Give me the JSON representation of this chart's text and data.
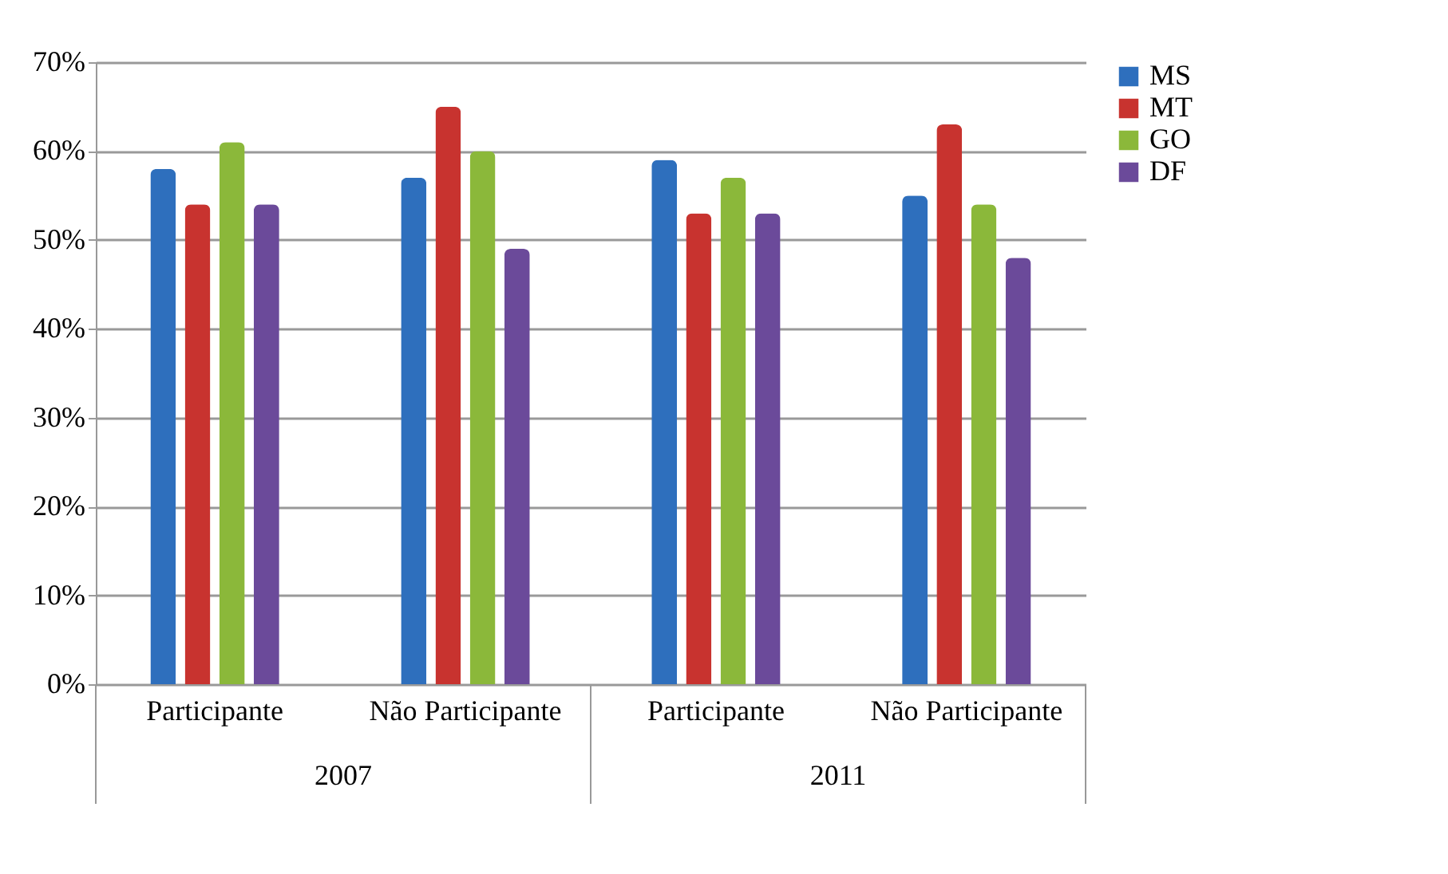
{
  "chart_data": {
    "type": "bar",
    "categories": [
      "Participante",
      "Não Participante",
      "Participante",
      "Não Participante"
    ],
    "series": [
      {
        "name": "MS",
        "color": "#2e6fbd",
        "values": [
          0.58,
          0.57,
          0.59,
          0.55
        ]
      },
      {
        "name": "MT",
        "color": "#c8332f",
        "values": [
          0.54,
          0.65,
          0.53,
          0.63
        ]
      },
      {
        "name": "GO",
        "color": "#8bb83a",
        "values": [
          0.61,
          0.6,
          0.57,
          0.54
        ]
      },
      {
        "name": "DF",
        "color": "#6b4a9a",
        "values": [
          0.54,
          0.49,
          0.53,
          0.48
        ]
      }
    ],
    "ylim": [
      0,
      0.7
    ],
    "yticks": [
      {
        "value": 0,
        "label": "0%"
      },
      {
        "value": 0.1,
        "label": "10%"
      },
      {
        "value": 0.2,
        "label": "20%"
      },
      {
        "value": 0.3,
        "label": "30%"
      },
      {
        "value": 0.4,
        "label": "40%"
      },
      {
        "value": 0.5,
        "label": "50%"
      },
      {
        "value": 0.6,
        "label": "60%"
      },
      {
        "value": 0.7,
        "label": "70%"
      }
    ],
    "annotations": [
      "2007",
      "2011"
    ],
    "grid": "y",
    "legend": "right"
  }
}
